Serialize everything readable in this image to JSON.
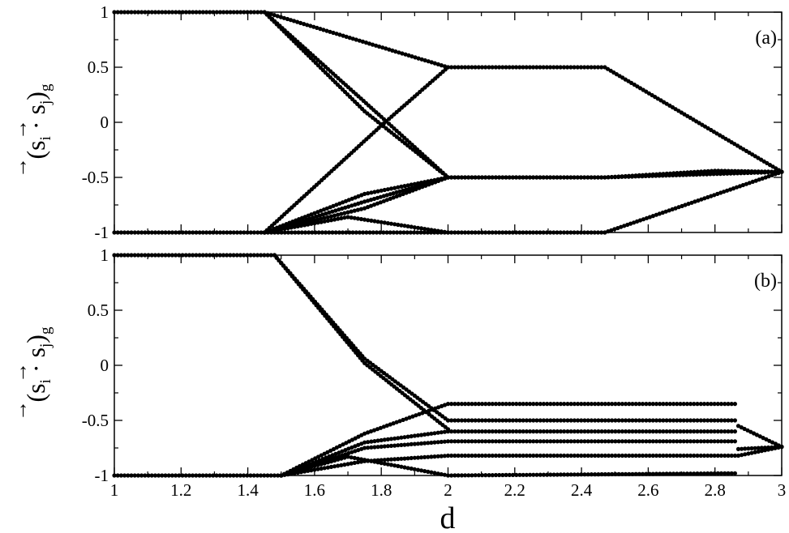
{
  "chart_data": [
    {
      "type": "scatter",
      "panel_label": "(a)",
      "xlabel": "d",
      "ylabel": {
        "open": "(",
        "s": "s",
        "i": "i",
        "dot": "·",
        "j": "j",
        "close": ")",
        "sub": "g"
      },
      "xlim": [
        1,
        3
      ],
      "ylim": [
        -1,
        1
      ],
      "grid": false,
      "x_ticks": [
        1,
        1.2,
        1.4,
        1.6,
        1.8,
        2,
        2.2,
        2.4,
        2.6,
        2.8,
        3
      ],
      "y_ticks": [
        1,
        0.5,
        0,
        -0.5,
        -1
      ],
      "y_tick_labels": [
        "1",
        "0.5",
        "0",
        "-0.5",
        "-1"
      ],
      "marker_color": "#000000",
      "series": [
        {
          "x": [
            1,
            1.45,
            2,
            2.47,
            3
          ],
          "y": [
            1,
            1,
            0.5,
            0.5,
            -0.45
          ]
        },
        {
          "x": [
            1.45,
            1.8,
            2
          ],
          "y": [
            1,
            0.05,
            -0.5
          ]
        },
        {
          "x": [
            1.45,
            1.75,
            2
          ],
          "y": [
            1,
            0.1,
            -0.5
          ]
        },
        {
          "x": [
            1.45,
            1.8,
            2
          ],
          "y": [
            -1,
            -0.03,
            0.5
          ]
        },
        {
          "x": [
            1.45,
            1.75,
            2
          ],
          "y": [
            -1,
            -0.65,
            -0.5
          ]
        },
        {
          "x": [
            1.45,
            1.75,
            2
          ],
          "y": [
            -1,
            -0.72,
            -0.5
          ]
        },
        {
          "x": [
            1.45,
            1.75,
            2
          ],
          "y": [
            -1,
            -0.78,
            -0.5
          ]
        },
        {
          "x": [
            1.45,
            1.7,
            2
          ],
          "y": [
            -1,
            -0.86,
            -1
          ]
        },
        {
          "x": [
            1,
            1.45,
            2,
            2.47
          ],
          "y": [
            -1,
            -1,
            -1,
            -1
          ]
        },
        {
          "x": [
            2,
            2.47,
            2.8,
            3
          ],
          "y": [
            -0.5,
            -0.5,
            -0.44,
            -0.45
          ]
        },
        {
          "x": [
            2,
            2.47,
            3
          ],
          "y": [
            -0.5,
            -0.5,
            -0.45
          ]
        },
        {
          "x": [
            2.47,
            3
          ],
          "y": [
            -1,
            -0.45
          ]
        }
      ]
    },
    {
      "type": "scatter",
      "panel_label": "(b)",
      "xlabel": "d",
      "ylabel": {
        "open": "(",
        "s": "s",
        "i": "i",
        "dot": "·",
        "j": "j",
        "close": ")",
        "sub": "g"
      },
      "xlim": [
        1,
        3
      ],
      "ylim": [
        -1,
        1
      ],
      "grid": false,
      "x_ticks": [
        1,
        1.2,
        1.4,
        1.6,
        1.8,
        2,
        2.2,
        2.4,
        2.6,
        2.8,
        3
      ],
      "x_tick_labels": [
        "1",
        "1.2",
        "1.4",
        "1.6",
        "1.8",
        "2",
        "2.2",
        "2.4",
        "2.6",
        "2.8",
        "3"
      ],
      "y_ticks": [
        1,
        0.5,
        0,
        -0.5,
        -1
      ],
      "y_tick_labels": [
        "1",
        "0.5",
        "0",
        "-0.5",
        "-1"
      ],
      "marker_color": "#000000",
      "series": [
        {
          "x": [
            1,
            1.48
          ],
          "y": [
            1,
            1
          ]
        },
        {
          "x": [
            1.48,
            1.75,
            2
          ],
          "y": [
            1,
            0.02,
            -0.58
          ]
        },
        {
          "x": [
            1.48,
            1.75,
            2
          ],
          "y": [
            1,
            0.06,
            -0.5
          ]
        },
        {
          "x": [
            1.5,
            1.75,
            2,
            2.86
          ],
          "y": [
            -1,
            -0.62,
            -0.35,
            -0.35
          ]
        },
        {
          "x": [
            1.5,
            1.75,
            2,
            2.86
          ],
          "y": [
            -1,
            -0.7,
            -0.6,
            -0.6
          ]
        },
        {
          "x": [
            1.5,
            1.75,
            2,
            2.86
          ],
          "y": [
            -1,
            -0.75,
            -0.69,
            -0.69
          ]
        },
        {
          "x": [
            1.5,
            1.75,
            2,
            2.86
          ],
          "y": [
            -1,
            -0.87,
            -0.82,
            -0.82
          ]
        },
        {
          "x": [
            1.5,
            1.7,
            2,
            2.86
          ],
          "y": [
            -1,
            -0.83,
            -1,
            -0.98
          ]
        },
        {
          "x": [
            2,
            2.86
          ],
          "y": [
            -0.5,
            -0.5
          ]
        },
        {
          "x": [
            1,
            1.5
          ],
          "y": [
            -1,
            -1
          ]
        },
        {
          "x": [
            2.87,
            3
          ],
          "y": [
            -0.55,
            -0.74
          ]
        },
        {
          "x": [
            2.87,
            3
          ],
          "y": [
            -0.82,
            -0.74
          ]
        },
        {
          "x": [
            2.87,
            3
          ],
          "y": [
            -0.76,
            -0.74
          ]
        }
      ]
    }
  ]
}
